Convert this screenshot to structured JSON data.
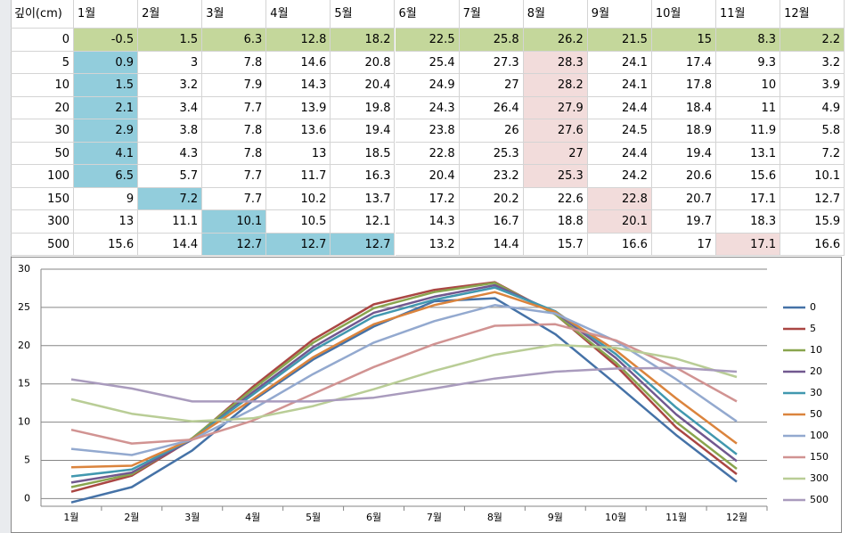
{
  "table": {
    "header": [
      "깊이(cm)",
      "1월",
      "2월",
      "3월",
      "4월",
      "5월",
      "6월",
      "7월",
      "8월",
      "9월",
      "10월",
      "11월",
      "12월"
    ],
    "rows": [
      {
        "depth": 0,
        "cells": [
          -0.5,
          1.5,
          6.3,
          12.8,
          18.2,
          22.5,
          25.8,
          26.2,
          21.5,
          15,
          8.3,
          2.2
        ]
      },
      {
        "depth": 5,
        "cells": [
          0.9,
          3,
          7.8,
          14.6,
          20.8,
          25.4,
          27.3,
          28.3,
          24.1,
          17.4,
          9.3,
          3.2
        ]
      },
      {
        "depth": 10,
        "cells": [
          1.5,
          3.2,
          7.9,
          14.3,
          20.4,
          24.9,
          27,
          28.2,
          24.1,
          17.8,
          10,
          3.9
        ]
      },
      {
        "depth": 20,
        "cells": [
          2.1,
          3.4,
          7.7,
          13.9,
          19.8,
          24.3,
          26.4,
          27.9,
          24.4,
          18.4,
          11,
          4.9
        ]
      },
      {
        "depth": 30,
        "cells": [
          2.9,
          3.8,
          7.8,
          13.6,
          19.4,
          23.8,
          26,
          27.6,
          24.5,
          18.9,
          11.9,
          5.8
        ]
      },
      {
        "depth": 50,
        "cells": [
          4.1,
          4.3,
          7.8,
          13,
          18.5,
          22.8,
          25.3,
          27,
          24.4,
          19.4,
          13.1,
          7.2
        ]
      },
      {
        "depth": 100,
        "cells": [
          6.5,
          5.7,
          7.7,
          11.7,
          16.3,
          20.4,
          23.2,
          25.3,
          24.2,
          20.6,
          15.6,
          10.1
        ]
      },
      {
        "depth": 150,
        "cells": [
          9,
          7.2,
          7.7,
          10.2,
          13.7,
          17.2,
          20.2,
          22.6,
          22.8,
          20.7,
          17.1,
          12.7
        ]
      },
      {
        "depth": 300,
        "cells": [
          13,
          11.1,
          10.1,
          10.5,
          12.1,
          14.3,
          16.7,
          18.8,
          20.1,
          19.7,
          18.3,
          15.9
        ]
      },
      {
        "depth": 500,
        "cells": [
          15.6,
          14.4,
          12.7,
          12.7,
          12.7,
          13.2,
          14.4,
          15.7,
          16.6,
          17,
          17.1,
          16.6
        ]
      }
    ],
    "highlights": [
      {
        "color": "#c4d79b",
        "cells": [
          [
            0,
            0
          ],
          [
            0,
            1
          ],
          [
            0,
            2
          ],
          [
            0,
            3
          ],
          [
            0,
            4
          ],
          [
            0,
            5
          ],
          [
            0,
            6
          ],
          [
            0,
            7
          ],
          [
            0,
            8
          ],
          [
            0,
            9
          ],
          [
            0,
            10
          ],
          [
            0,
            11
          ]
        ]
      },
      {
        "color": "#92cddc",
        "cells": [
          [
            1,
            0
          ],
          [
            2,
            0
          ],
          [
            3,
            0
          ],
          [
            4,
            0
          ],
          [
            5,
            0
          ],
          [
            6,
            0
          ],
          [
            7,
            1
          ],
          [
            8,
            2
          ],
          [
            9,
            2
          ],
          [
            9,
            3
          ],
          [
            9,
            4
          ]
        ]
      },
      {
        "color": "#f2dcdb",
        "cells": [
          [
            1,
            7
          ],
          [
            2,
            7
          ],
          [
            3,
            7
          ],
          [
            4,
            7
          ],
          [
            5,
            7
          ],
          [
            6,
            7
          ],
          [
            7,
            8
          ],
          [
            8,
            8
          ],
          [
            9,
            10
          ]
        ]
      }
    ]
  },
  "chart_data": {
    "type": "line",
    "categories": [
      "1월",
      "2월",
      "3월",
      "4월",
      "5월",
      "6월",
      "7월",
      "8월",
      "9월",
      "10월",
      "11월",
      "12월"
    ],
    "series": [
      {
        "name": "0",
        "color": "#4572a7",
        "values": [
          -0.5,
          1.5,
          6.3,
          12.8,
          18.2,
          22.5,
          25.8,
          26.2,
          21.5,
          15,
          8.3,
          2.2
        ]
      },
      {
        "name": "5",
        "color": "#aa4643",
        "values": [
          0.9,
          3,
          7.8,
          14.6,
          20.8,
          25.4,
          27.3,
          28.3,
          24.1,
          17.4,
          9.3,
          3.2
        ]
      },
      {
        "name": "10",
        "color": "#89a54e",
        "values": [
          1.5,
          3.2,
          7.9,
          14.3,
          20.4,
          24.9,
          27,
          28.2,
          24.1,
          17.8,
          10,
          3.9
        ]
      },
      {
        "name": "20",
        "color": "#71588f",
        "values": [
          2.1,
          3.4,
          7.7,
          13.9,
          19.8,
          24.3,
          26.4,
          27.9,
          24.4,
          18.4,
          11,
          4.9
        ]
      },
      {
        "name": "30",
        "color": "#4198af",
        "values": [
          2.9,
          3.8,
          7.8,
          13.6,
          19.4,
          23.8,
          26,
          27.6,
          24.5,
          18.9,
          11.9,
          5.8
        ]
      },
      {
        "name": "50",
        "color": "#db843d",
        "values": [
          4.1,
          4.3,
          7.8,
          13,
          18.5,
          22.8,
          25.3,
          27,
          24.4,
          19.4,
          13.1,
          7.2
        ]
      },
      {
        "name": "100",
        "color": "#93a9cf",
        "values": [
          6.5,
          5.7,
          7.7,
          11.7,
          16.3,
          20.4,
          23.2,
          25.3,
          24.2,
          20.6,
          15.6,
          10.1
        ]
      },
      {
        "name": "150",
        "color": "#d19392",
        "values": [
          9,
          7.2,
          7.7,
          10.2,
          13.7,
          17.2,
          20.2,
          22.6,
          22.8,
          20.7,
          17.1,
          12.7
        ]
      },
      {
        "name": "300",
        "color": "#b9cd96",
        "values": [
          13,
          11.1,
          10.1,
          10.5,
          12.1,
          14.3,
          16.7,
          18.8,
          20.1,
          19.7,
          18.3,
          15.9
        ]
      },
      {
        "name": "500",
        "color": "#a99bbd",
        "values": [
          15.6,
          14.4,
          12.7,
          12.7,
          12.7,
          13.2,
          14.4,
          15.7,
          16.6,
          17,
          17.1,
          16.6
        ]
      }
    ],
    "ylim": [
      -1,
      30
    ],
    "yticks": [
      0,
      5,
      10,
      15,
      20,
      25,
      30
    ],
    "grid": true,
    "legend": "right"
  }
}
